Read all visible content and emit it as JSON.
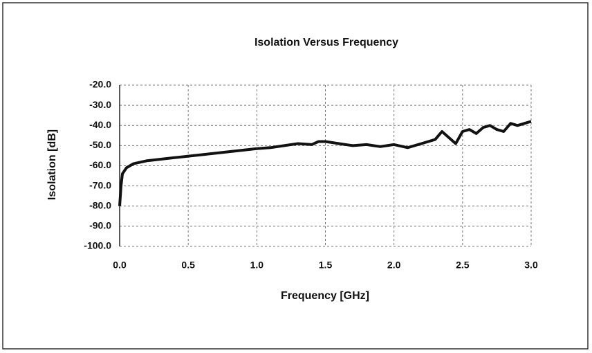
{
  "chart_data": {
    "type": "line",
    "title": "Isolation Versus Frequency",
    "x_label": "Frequency [GHz]",
    "y_label": "Isolation [dB]",
    "x": [
      0.0,
      0.01,
      0.02,
      0.05,
      0.1,
      0.2,
      0.4,
      0.6,
      0.8,
      1.0,
      1.1,
      1.2,
      1.3,
      1.4,
      1.45,
      1.5,
      1.6,
      1.7,
      1.8,
      1.9,
      2.0,
      2.1,
      2.2,
      2.3,
      2.35,
      2.4,
      2.45,
      2.5,
      2.55,
      2.6,
      2.65,
      2.7,
      2.75,
      2.8,
      2.85,
      2.9,
      3.0
    ],
    "series": [
      {
        "color": "#111111",
        "values": [
          -80,
          -70,
          -64,
          -61,
          -59,
          -57.5,
          -56,
          -54.5,
          -53,
          -51.5,
          -51,
          -50,
          -49,
          -49.5,
          -48,
          -48,
          -49,
          -50,
          -49.5,
          -50.5,
          -49.5,
          -51,
          -49,
          -47,
          -43,
          -46,
          -49,
          -43,
          -42,
          -44,
          -41,
          -40,
          -42,
          -43,
          -39,
          -40,
          -38
        ]
      }
    ],
    "xlim": [
      0,
      3
    ],
    "ylim": [
      -100,
      -20
    ],
    "xticks": [
      {
        "value": 0,
        "label": "0.0"
      },
      {
        "value": 0.5,
        "label": "0.5"
      },
      {
        "value": 1,
        "label": "1.0"
      },
      {
        "value": 1.5,
        "label": "1.5"
      },
      {
        "value": 2,
        "label": "2.0"
      },
      {
        "value": 2.5,
        "label": "2.5"
      },
      {
        "value": 3,
        "label": "3.0"
      }
    ],
    "yticks": [
      {
        "value": -20,
        "label": "-20.0"
      },
      {
        "value": -30,
        "label": "-30.0"
      },
      {
        "value": -40,
        "label": "-40.0"
      },
      {
        "value": -50,
        "label": "-50.0"
      },
      {
        "value": -60,
        "label": "-60.0"
      },
      {
        "value": -70,
        "label": "-70.0"
      },
      {
        "value": -80,
        "label": "-80.0"
      },
      {
        "value": -90,
        "label": "-90.0"
      },
      {
        "value": -100,
        "label": "-100.0"
      }
    ],
    "grid": true
  }
}
